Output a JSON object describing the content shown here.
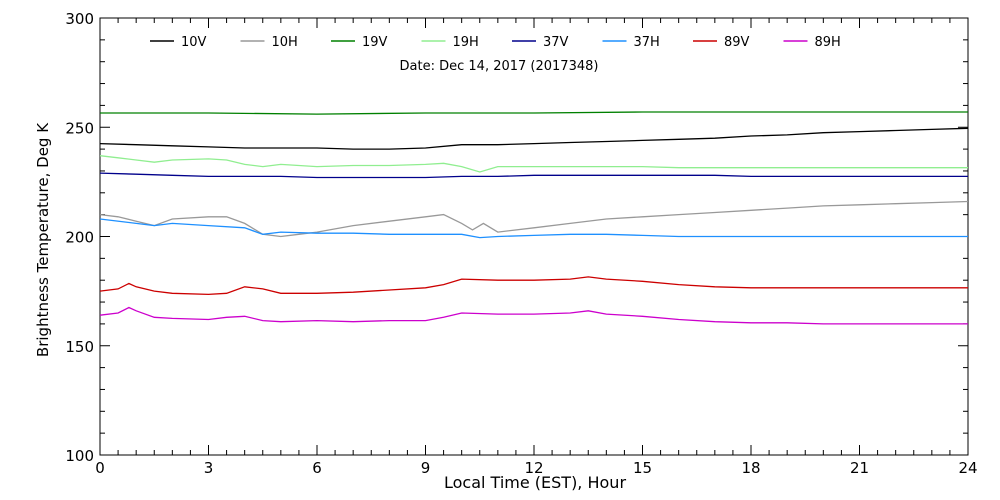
{
  "chart_data": {
    "type": "line",
    "title": "Date: Dec 14, 2017 (2017348)",
    "xlabel": "Local Time (EST), Hour",
    "ylabel": "Brightness Temperature, Deg K",
    "xlim": [
      0,
      24
    ],
    "ylim": [
      100,
      300
    ],
    "xticks": [
      0,
      3,
      6,
      9,
      12,
      15,
      18,
      21,
      24
    ],
    "yticks": [
      100,
      150,
      200,
      250,
      300
    ],
    "grid": false,
    "legend_position": "top",
    "series": [
      {
        "name": "10V",
        "color": "#000000",
        "x": [
          0,
          1,
          2,
          3,
          4,
          5,
          6,
          7,
          8,
          9,
          10,
          11,
          12,
          13,
          14,
          15,
          16,
          17,
          18,
          19,
          20,
          21,
          22,
          23,
          24
        ],
        "y": [
          242.5,
          242,
          241.5,
          241,
          240.5,
          240.5,
          240.5,
          240,
          240,
          240.5,
          242,
          242,
          242.5,
          243,
          243.5,
          244,
          244.5,
          245,
          246,
          246.5,
          247.5,
          248,
          248.5,
          249,
          249.5
        ]
      },
      {
        "name": "10H",
        "color": "#999999",
        "x": [
          0,
          0.5,
          1,
          1.5,
          2,
          3,
          3.5,
          4,
          4.5,
          5,
          5.5,
          6,
          7,
          8,
          9,
          9.5,
          10,
          10.3,
          10.6,
          11,
          12,
          13,
          14,
          15,
          16,
          17,
          18,
          19,
          20,
          21,
          22,
          23,
          24
        ],
        "y": [
          210,
          209,
          207,
          205,
          208,
          209,
          209,
          206,
          201,
          200,
          201,
          202,
          205,
          207,
          209,
          210,
          206,
          203,
          206,
          202,
          204,
          206,
          208,
          209,
          210,
          211,
          212,
          213,
          214,
          214.5,
          215,
          215.5,
          216
        ]
      },
      {
        "name": "19V",
        "color": "#008000",
        "x": [
          0,
          3,
          6,
          9,
          12,
          15,
          18,
          21,
          24
        ],
        "y": [
          256.5,
          256.5,
          256,
          256.5,
          256.5,
          257,
          257,
          257,
          257
        ]
      },
      {
        "name": "19H",
        "color": "#90ee90",
        "x": [
          0,
          0.5,
          1,
          1.5,
          2,
          3,
          3.5,
          4,
          4.5,
          5,
          6,
          7,
          8,
          9,
          9.5,
          10,
          10.5,
          11,
          12,
          13,
          14,
          15,
          16,
          17,
          18,
          19,
          20,
          21,
          22,
          23,
          24
        ],
        "y": [
          237,
          236,
          235,
          234,
          235,
          235.5,
          235,
          233,
          232,
          233,
          232,
          232.5,
          232.5,
          233,
          233.5,
          232,
          229.5,
          232,
          232,
          232,
          232,
          232,
          231.5,
          231.5,
          231.5,
          231.5,
          231.5,
          231.5,
          231.5,
          231.5,
          231.5
        ]
      },
      {
        "name": "37V",
        "color": "#00008b",
        "x": [
          0,
          1,
          2,
          3,
          4,
          5,
          6,
          7,
          8,
          9,
          10,
          11,
          12,
          13,
          14,
          15,
          16,
          17,
          18,
          19,
          20,
          21,
          22,
          23,
          24
        ],
        "y": [
          229,
          228.5,
          228,
          227.5,
          227.5,
          227.5,
          227,
          227,
          227,
          227,
          227.5,
          227.5,
          228,
          228,
          228,
          228,
          228,
          228,
          227.5,
          227.5,
          227.5,
          227.5,
          227.5,
          227.5,
          227.5
        ]
      },
      {
        "name": "37H",
        "color": "#1e90ff",
        "x": [
          0,
          1,
          1.5,
          2,
          3,
          4,
          4.5,
          5,
          6,
          7,
          8,
          9,
          10,
          10.5,
          11,
          12,
          13,
          14,
          15,
          16,
          17,
          18,
          19,
          20,
          21,
          22,
          23,
          24
        ],
        "y": [
          208,
          206,
          205,
          206,
          205,
          204,
          201,
          202,
          201.5,
          201.5,
          201,
          201,
          201,
          199.5,
          200,
          200.5,
          201,
          201,
          200.5,
          200,
          200,
          200,
          200,
          200,
          200,
          200,
          200,
          200
        ]
      },
      {
        "name": "89V",
        "color": "#cc0000",
        "x": [
          0,
          0.5,
          0.8,
          1,
          1.5,
          2,
          3,
          3.5,
          4,
          4.5,
          5,
          6,
          7,
          8,
          9,
          9.5,
          10,
          11,
          12,
          13,
          13.5,
          14,
          15,
          16,
          17,
          18,
          19,
          20,
          21,
          22,
          23,
          24
        ],
        "y": [
          175,
          176,
          178.5,
          177,
          175,
          174,
          173.5,
          174,
          177,
          176,
          174,
          174,
          174.5,
          175.5,
          176.5,
          178,
          180.5,
          180,
          180,
          180.5,
          181.5,
          180.5,
          179.5,
          178,
          177,
          176.5,
          176.5,
          176.5,
          176.5,
          176.5,
          176.5,
          176.5
        ]
      },
      {
        "name": "89H",
        "color": "#cc00cc",
        "x": [
          0,
          0.5,
          0.8,
          1,
          1.5,
          2,
          3,
          3.5,
          4,
          4.5,
          5,
          6,
          7,
          8,
          9,
          9.5,
          10,
          11,
          12,
          13,
          13.5,
          14,
          15,
          16,
          17,
          18,
          19,
          20,
          21,
          22,
          23,
          24
        ],
        "y": [
          164,
          165,
          167.5,
          166,
          163,
          162.5,
          162,
          163,
          163.5,
          161.5,
          161,
          161.5,
          161,
          161.5,
          161.5,
          163,
          165,
          164.5,
          164.5,
          165,
          166,
          164.5,
          163.5,
          162,
          161,
          160.5,
          160.5,
          160,
          160,
          160,
          160,
          160
        ]
      }
    ]
  }
}
